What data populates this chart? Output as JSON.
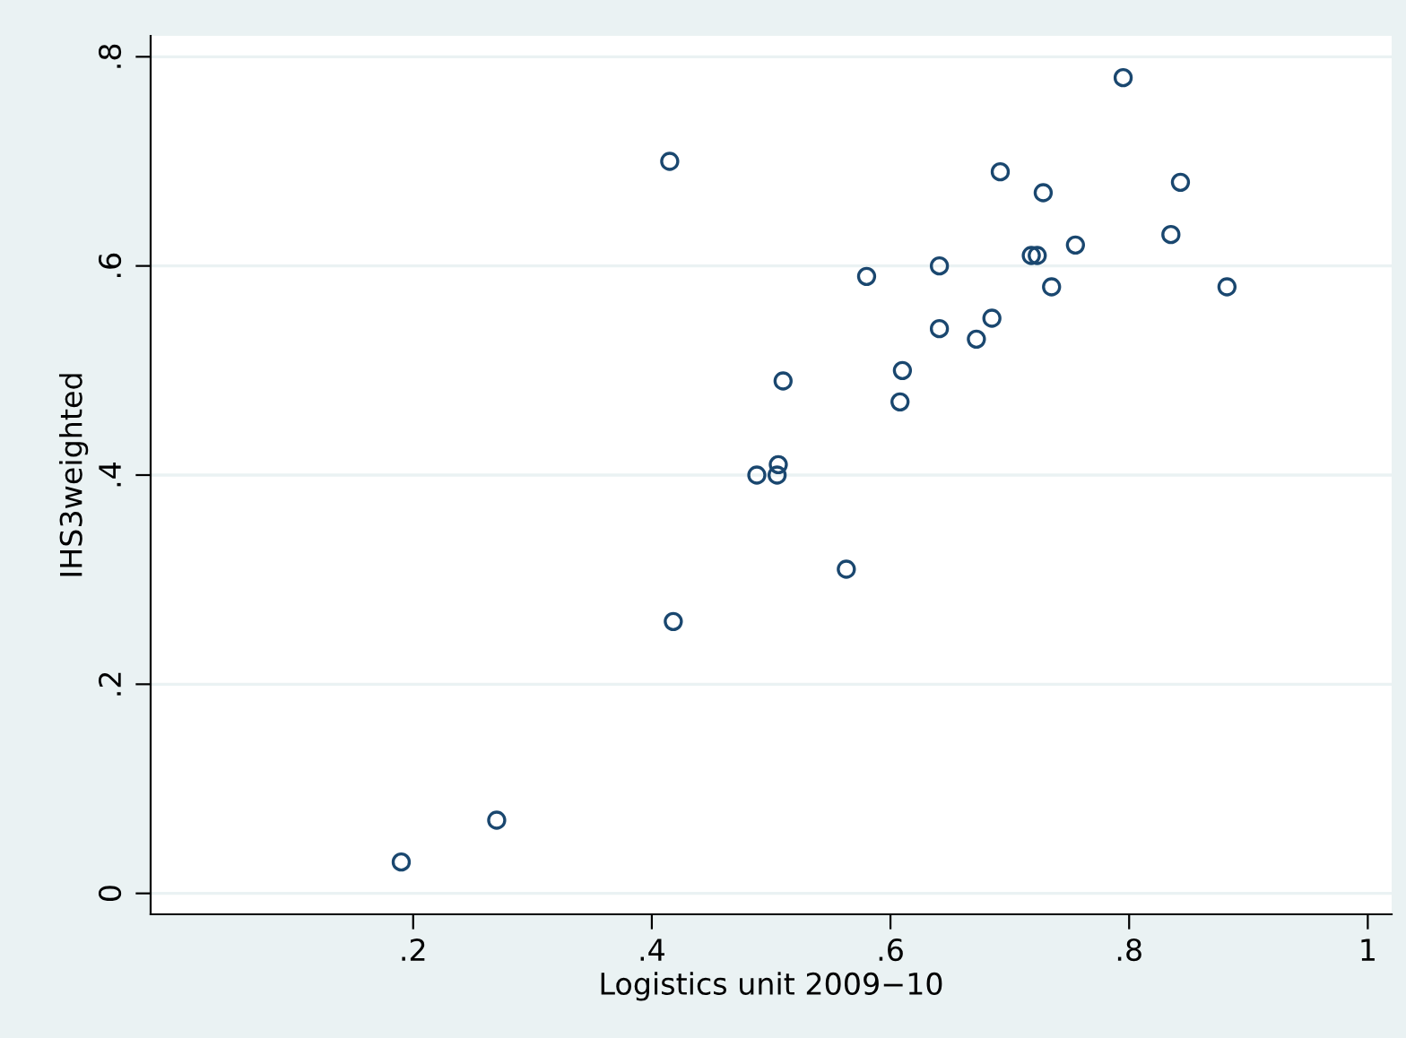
{
  "chart_data": {
    "type": "scatter",
    "xlabel": "Logistics unit 2009−10",
    "ylabel": "IHS3weighted",
    "x": [
      0.19,
      0.27,
      0.415,
      0.418,
      0.488,
      0.505,
      0.506,
      0.51,
      0.563,
      0.58,
      0.608,
      0.61,
      0.641,
      0.641,
      0.672,
      0.685,
      0.692,
      0.718,
      0.723,
      0.728,
      0.735,
      0.755,
      0.795,
      0.835,
      0.843,
      0.882
    ],
    "values": [
      0.03,
      0.07,
      0.7,
      0.26,
      0.4,
      0.4,
      0.41,
      0.49,
      0.31,
      0.59,
      0.47,
      0.5,
      0.6,
      0.54,
      0.53,
      0.55,
      0.69,
      0.61,
      0.61,
      0.67,
      0.58,
      0.62,
      0.78,
      0.63,
      0.68,
      0.58
    ],
    "color": "#1a476f",
    "marker": "circle",
    "xlim": [
      -0.02,
      1.02
    ],
    "ylim": [
      -0.02,
      0.82
    ],
    "xticks": [
      {
        "value": 0.2,
        "label": ".2"
      },
      {
        "value": 0.4,
        "label": ".4"
      },
      {
        "value": 0.6,
        "label": ".6"
      },
      {
        "value": 0.8,
        "label": ".8"
      },
      1
    ],
    "yticks": [
      0,
      {
        "value": 0.2,
        "label": ".2"
      },
      {
        "value": 0.4,
        "label": ".4"
      },
      {
        "value": 0.6,
        "label": ".6"
      },
      {
        "value": 0.8,
        "label": ".8"
      }
    ],
    "grid": "y",
    "legend": false
  }
}
